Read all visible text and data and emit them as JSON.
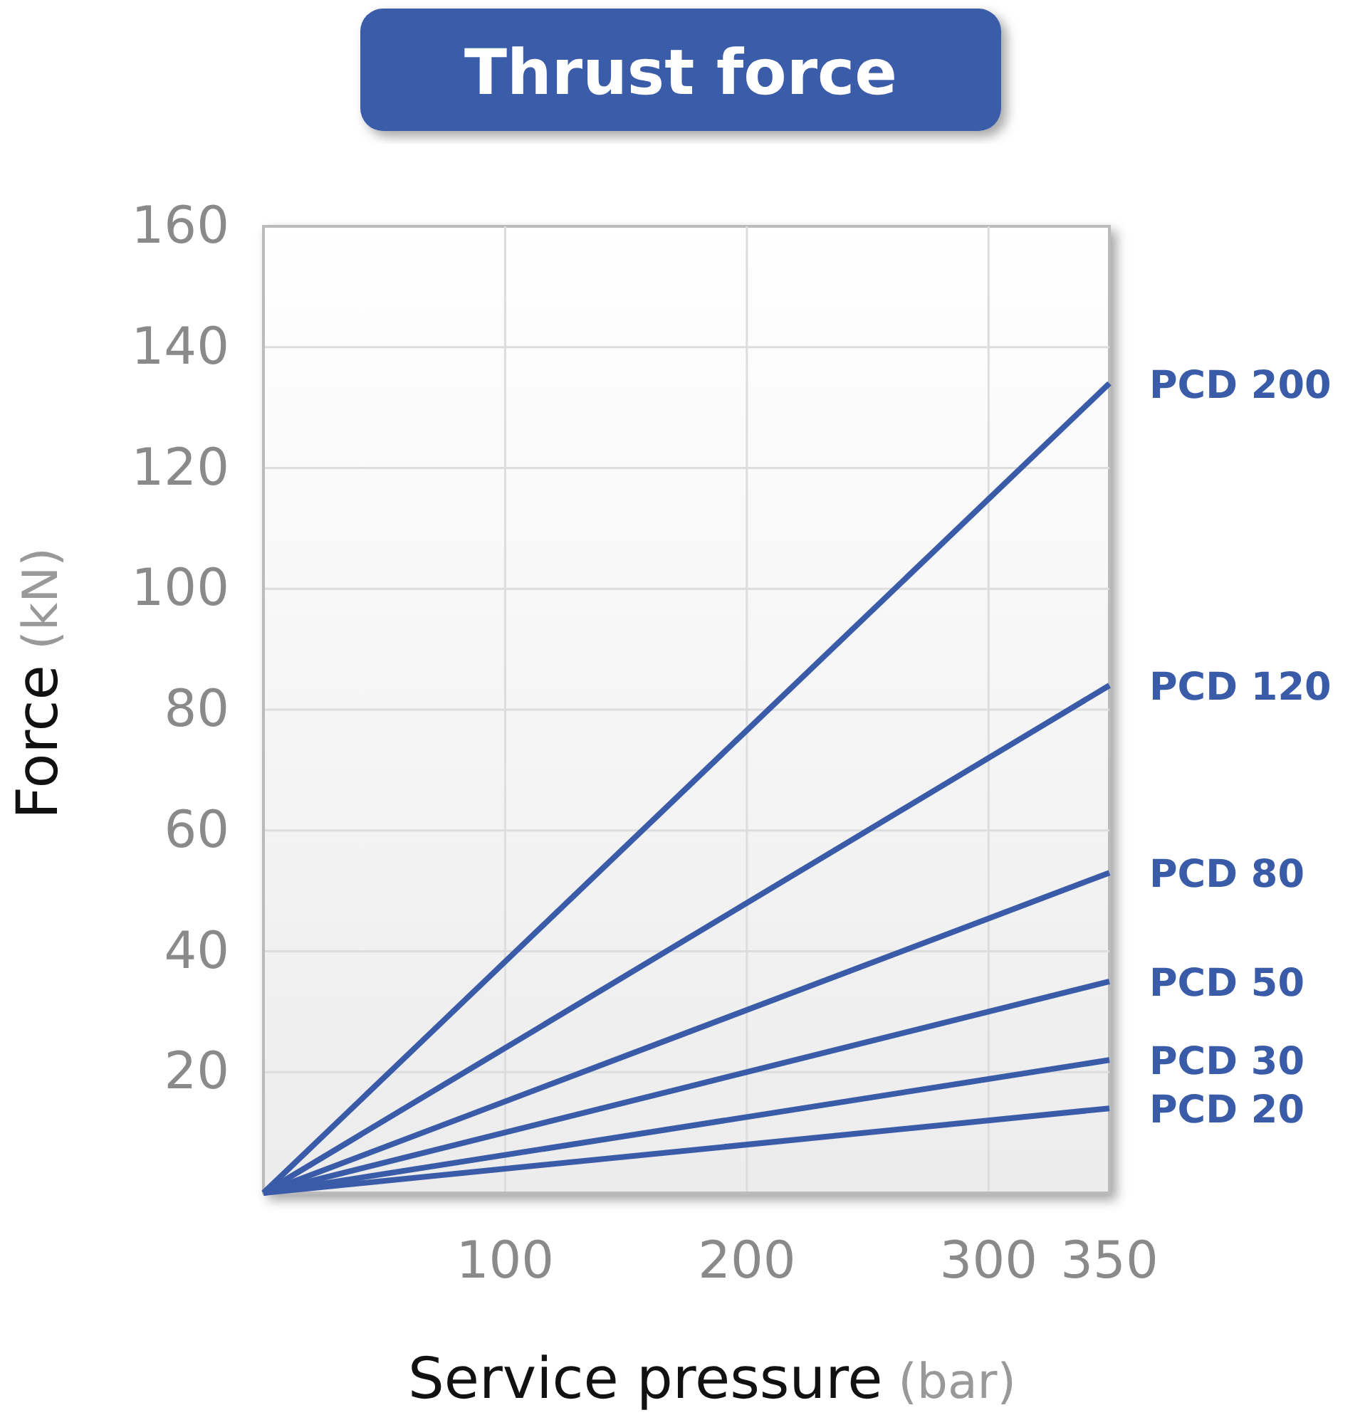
{
  "chart_data": {
    "type": "line",
    "title": "Thrust force",
    "xlabel": "Service pressure (bar)",
    "ylabel": "Force (kN)",
    "xlim": [
      0,
      350
    ],
    "xticks": [
      100,
      200,
      300,
      350
    ],
    "ylim": [
      0,
      160
    ],
    "yticks": [
      20,
      40,
      60,
      80,
      100,
      120,
      140,
      160
    ],
    "grid": true,
    "marker": "none",
    "line_style": "solid",
    "x": [
      0,
      350
    ],
    "series": [
      {
        "name": "PCD 200",
        "color": "#3a5ca8",
        "values": [
          0,
          134
        ]
      },
      {
        "name": "PCD 120",
        "color": "#3a5ca8",
        "values": [
          0,
          84
        ]
      },
      {
        "name": "PCD 80",
        "color": "#3a5ca8",
        "values": [
          0,
          53
        ]
      },
      {
        "name": "PCD 50",
        "color": "#3a5ca8",
        "values": [
          0,
          35
        ]
      },
      {
        "name": "PCD 30",
        "color": "#3a5ca8",
        "values": [
          0,
          22
        ]
      },
      {
        "name": "PCD 20",
        "color": "#3a5ca8",
        "values": [
          0,
          14
        ]
      }
    ]
  }
}
